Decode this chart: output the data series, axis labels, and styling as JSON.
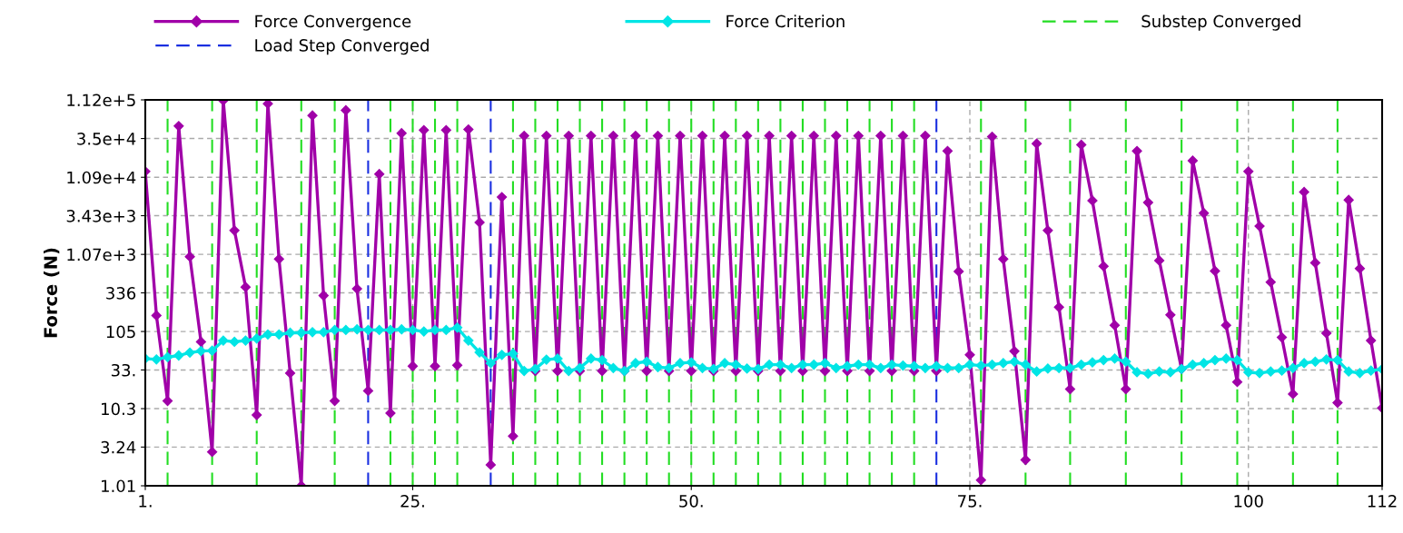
{
  "chart_data": {
    "type": "line",
    "ylabel": "Force (N)",
    "x": [
      1,
      2,
      3,
      4,
      5,
      6,
      7,
      8,
      9,
      10,
      11,
      12,
      13,
      14,
      15,
      16,
      17,
      18,
      19,
      20,
      21,
      22,
      23,
      24,
      25,
      26,
      27,
      28,
      29,
      30,
      31,
      32,
      33,
      34,
      35,
      36,
      37,
      38,
      39,
      40,
      41,
      42,
      43,
      44,
      45,
      46,
      47,
      48,
      49,
      50,
      51,
      52,
      53,
      54,
      55,
      56,
      57,
      58,
      59,
      60,
      61,
      62,
      63,
      64,
      65,
      66,
      67,
      68,
      69,
      70,
      71,
      72,
      73,
      74,
      75,
      76,
      77,
      78,
      79,
      80,
      81,
      82,
      83,
      84,
      85,
      86,
      87,
      88,
      89,
      90,
      91,
      92,
      93,
      94,
      95,
      96,
      97,
      98,
      99,
      100,
      101,
      102,
      103,
      104,
      105,
      106,
      107,
      108,
      109,
      110,
      111,
      112
    ],
    "series": [
      {
        "name": "Force Convergence",
        "color": "#a000a8",
        "values": [
          13000,
          170,
          13,
          51000,
          1000,
          77,
          2.8,
          110000,
          2200,
          400,
          8.5,
          100000,
          930,
          30,
          1.01,
          70000,
          310,
          13,
          82000,
          380,
          17.6,
          12000,
          9,
          41000,
          37,
          45000,
          37,
          45000,
          38,
          46000,
          2800,
          1.9,
          6000,
          4.5,
          38000,
          32,
          38000,
          32,
          38000,
          32,
          38000,
          32,
          38000,
          32,
          38000,
          32,
          38000,
          32,
          38000,
          32,
          38000,
          32,
          38000,
          32,
          38000,
          32,
          38000,
          32,
          38000,
          32,
          38000,
          32,
          38000,
          32,
          38000,
          32,
          38000,
          32,
          38000,
          32,
          38000,
          32,
          24000,
          640,
          52,
          1.2,
          37000,
          930,
          58,
          2.2,
          30000,
          2200,
          218,
          18.5,
          29000,
          5400,
          750,
          127,
          18.5,
          24000,
          5100,
          890,
          173,
          34,
          18000,
          3700,
          650,
          127,
          23,
          13000,
          2500,
          465,
          88,
          16,
          7000,
          830,
          100,
          12.3,
          5500,
          700,
          80,
          10.5
        ]
      },
      {
        "name": "Force Criterion",
        "color": "#00e5e5",
        "values": [
          46.5,
          45.3,
          48.6,
          51,
          55.7,
          58.3,
          59,
          80,
          77,
          80,
          85,
          96,
          96,
          101,
          101,
          103,
          103,
          110,
          110,
          112,
          110,
          110,
          110,
          112,
          110,
          105,
          110,
          110,
          118,
          80,
          56,
          40.5,
          52,
          54,
          32,
          34,
          45,
          46.5,
          32,
          35,
          46.5,
          44.4,
          35,
          32,
          40.5,
          42.4,
          36,
          35,
          40.5,
          41.5,
          35,
          34,
          40.5,
          38.7,
          34.4,
          34,
          38.7,
          38.7,
          35,
          38.7,
          38.7,
          40.5,
          35,
          37,
          38.7,
          38.7,
          35,
          38.7,
          37.7,
          37,
          35,
          37,
          35,
          35,
          38.7,
          37.7,
          38.7,
          40.5,
          42.4,
          38.7,
          31.5,
          34.4,
          35,
          35,
          38.7,
          41.5,
          44.4,
          46.5,
          42.4,
          30.8,
          29.4,
          31.5,
          30.8,
          34,
          38.7,
          40.5,
          44.4,
          46.5,
          44.4,
          30.8,
          30.1,
          31.5,
          32.3,
          35,
          40.5,
          42.4,
          45.3,
          44.4,
          31.5,
          30.1,
          32.3,
          33.8
        ]
      }
    ],
    "marker": "diamond",
    "line_style": "solid",
    "log": "y",
    "grid": true,
    "legend": "top",
    "xlim": [
      1,
      112
    ],
    "xticks": [
      {
        "value": 1,
        "label": "1."
      },
      {
        "value": 25,
        "label": "25."
      },
      {
        "value": 50,
        "label": "50."
      },
      {
        "value": 75,
        "label": "75."
      },
      100,
      112
    ],
    "ylim": [
      1.01,
      112000
    ],
    "yticks": [
      1.01,
      3.24,
      10.3,
      {
        "value": 33,
        "label": "33."
      },
      105,
      336,
      {
        "value": 1070,
        "label": "1.07e+3"
      },
      {
        "value": 3430,
        "label": "3.43e+3"
      },
      {
        "value": 10900,
        "label": "1.09e+4"
      },
      {
        "value": 35000,
        "label": "3.5e+4"
      },
      {
        "value": 112000,
        "label": "1.12e+5"
      }
    ],
    "ref_lines": [
      {
        "axis": "x",
        "value": 3,
        "label": "Substep Converged",
        "color": "#22dd22",
        "line_style": "dashed"
      },
      {
        "axis": "x",
        "value": 7,
        "color": "#22dd22",
        "line_style": "dashed"
      },
      {
        "axis": "x",
        "value": 11,
        "color": "#22dd22",
        "line_style": "dashed"
      },
      {
        "axis": "x",
        "value": 15,
        "color": "#22dd22",
        "line_style": "dashed"
      },
      {
        "axis": "x",
        "value": 18,
        "color": "#22dd22",
        "line_style": "dashed"
      },
      {
        "axis": "x",
        "value": 21,
        "label": "Load Step Converged",
        "color": "#1a2fe0",
        "line_style": "dashed"
      },
      {
        "axis": "x",
        "value": 23,
        "color": "#22dd22",
        "line_style": "dashed"
      },
      {
        "axis": "x",
        "value": 25,
        "color": "#22dd22",
        "line_style": "dashed"
      },
      {
        "axis": "x",
        "value": 27,
        "color": "#22dd22",
        "line_style": "dashed"
      },
      {
        "axis": "x",
        "value": 29,
        "color": "#22dd22",
        "line_style": "dashed"
      },
      {
        "axis": "x",
        "value": 32,
        "color": "#1a2fe0",
        "line_style": "dashed"
      },
      {
        "axis": "x",
        "value": 34,
        "color": "#22dd22",
        "line_style": "dashed"
      },
      {
        "axis": "x",
        "value": 36,
        "color": "#22dd22",
        "line_style": "dashed"
      },
      {
        "axis": "x",
        "value": 38,
        "color": "#22dd22",
        "line_style": "dashed"
      },
      {
        "axis": "x",
        "value": 40,
        "color": "#22dd22",
        "line_style": "dashed"
      },
      {
        "axis": "x",
        "value": 42,
        "color": "#22dd22",
        "line_style": "dashed"
      },
      {
        "axis": "x",
        "value": 44,
        "color": "#22dd22",
        "line_style": "dashed"
      },
      {
        "axis": "x",
        "value": 46,
        "color": "#22dd22",
        "line_style": "dashed"
      },
      {
        "axis": "x",
        "value": 48,
        "color": "#22dd22",
        "line_style": "dashed"
      },
      {
        "axis": "x",
        "value": 50,
        "color": "#22dd22",
        "line_style": "dashed"
      },
      {
        "axis": "x",
        "value": 52,
        "color": "#22dd22",
        "line_style": "dashed"
      },
      {
        "axis": "x",
        "value": 54,
        "color": "#22dd22",
        "line_style": "dashed"
      },
      {
        "axis": "x",
        "value": 56,
        "color": "#22dd22",
        "line_style": "dashed"
      },
      {
        "axis": "x",
        "value": 58,
        "color": "#22dd22",
        "line_style": "dashed"
      },
      {
        "axis": "x",
        "value": 60,
        "color": "#22dd22",
        "line_style": "dashed"
      },
      {
        "axis": "x",
        "value": 62,
        "color": "#22dd22",
        "line_style": "dashed"
      },
      {
        "axis": "x",
        "value": 64,
        "color": "#22dd22",
        "line_style": "dashed"
      },
      {
        "axis": "x",
        "value": 66,
        "color": "#22dd22",
        "line_style": "dashed"
      },
      {
        "axis": "x",
        "value": 68,
        "color": "#22dd22",
        "line_style": "dashed"
      },
      {
        "axis": "x",
        "value": 70,
        "color": "#22dd22",
        "line_style": "dashed"
      },
      {
        "axis": "x",
        "value": 72,
        "color": "#1a2fe0",
        "line_style": "dashed"
      },
      {
        "axis": "x",
        "value": 76,
        "color": "#22dd22",
        "line_style": "dashed"
      },
      {
        "axis": "x",
        "value": 80,
        "color": "#22dd22",
        "line_style": "dashed"
      },
      {
        "axis": "x",
        "value": 84,
        "color": "#22dd22",
        "line_style": "dashed"
      },
      {
        "axis": "x",
        "value": 89,
        "color": "#22dd22",
        "line_style": "dashed"
      },
      {
        "axis": "x",
        "value": 94,
        "color": "#22dd22",
        "line_style": "dashed"
      },
      {
        "axis": "x",
        "value": 99,
        "color": "#22dd22",
        "line_style": "dashed"
      },
      {
        "axis": "x",
        "value": 104,
        "color": "#22dd22",
        "line_style": "dashed"
      },
      {
        "axis": "x",
        "value": 108,
        "color": "#22dd22",
        "line_style": "dashed"
      }
    ]
  }
}
